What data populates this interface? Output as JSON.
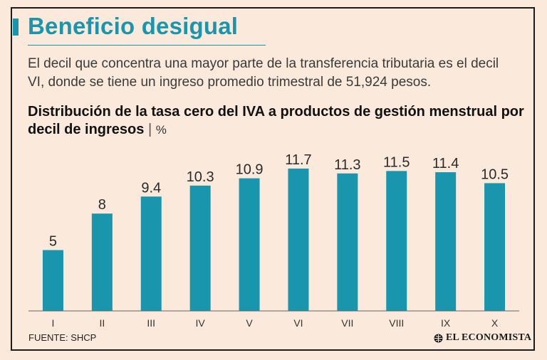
{
  "header": {
    "title": "Beneficio desigual",
    "subtitle": "El decil que concentra una mayor parte de la transferencia tributaria es el decil VI, donde se tiene un ingreso promedio trimestral de 51,924 pesos."
  },
  "chart_data": {
    "type": "bar",
    "title": "Distribución de la tasa cero del IVA a productos de gestión menstrual por decil de ingresos",
    "unit_separator": "|",
    "unit": "%",
    "categories": [
      "I",
      "II",
      "III",
      "IV",
      "V",
      "VI",
      "VII",
      "VIII",
      "IX",
      "X"
    ],
    "values": [
      5,
      8,
      9.4,
      10.3,
      10.9,
      11.7,
      11.3,
      11.5,
      11.4,
      10.5
    ],
    "value_labels": [
      "5",
      "8",
      "9.4",
      "10.3",
      "10.9",
      "11.7",
      "11.3",
      "11.5",
      "11.4",
      "10.5"
    ],
    "ylim": [
      0,
      12
    ],
    "grid": false,
    "bar_color": "#1996ad"
  },
  "footer": {
    "source": "FUENTE: SHCP",
    "brand": "EL ECONOMISTA"
  },
  "colors": {
    "background": "#fbeadb",
    "accent": "#1996ad",
    "text": "#111111"
  }
}
